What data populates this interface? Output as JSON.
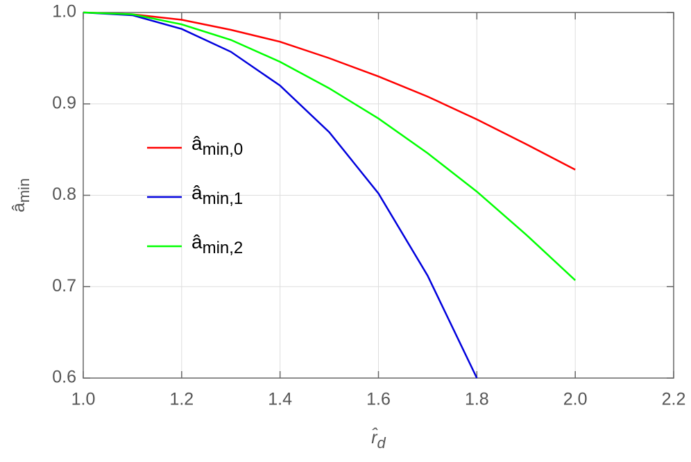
{
  "chart_data": {
    "type": "line",
    "x_label": "r̂d",
    "y_label": "âmin",
    "series": [
      {
        "name": "âmin,0",
        "color": "#ff0000",
        "x": [
          1.0,
          1.1,
          1.2,
          1.3,
          1.4,
          1.5,
          1.6,
          1.7,
          1.8,
          1.9,
          2.0
        ],
        "values": [
          1.0,
          0.998,
          0.992,
          0.981,
          0.968,
          0.95,
          0.93,
          0.908,
          0.883,
          0.856,
          0.828
        ]
      },
      {
        "name": "âmin,1",
        "color": "#0000dd",
        "x": [
          1.0,
          1.1,
          1.2,
          1.3,
          1.4,
          1.5,
          1.6,
          1.7,
          1.8
        ],
        "values": [
          1.0,
          0.997,
          0.982,
          0.957,
          0.92,
          0.869,
          0.802,
          0.712,
          0.6
        ]
      },
      {
        "name": "âmin,2",
        "color": "#00ff00",
        "x": [
          1.0,
          1.1,
          1.2,
          1.3,
          1.4,
          1.5,
          1.6,
          1.7,
          1.8,
          1.9,
          2.0
        ],
        "values": [
          1.0,
          0.998,
          0.987,
          0.97,
          0.946,
          0.917,
          0.884,
          0.846,
          0.804,
          0.757,
          0.707
        ]
      }
    ],
    "xlim": [
      1.0,
      2.2
    ],
    "xticks": [
      {
        "value": 1.0,
        "label": "1.0"
      },
      1.2,
      1.4,
      1.6,
      1.8,
      {
        "value": 2.0,
        "label": "2.0"
      },
      2.2
    ],
    "ylim": [
      0.6,
      1.0
    ],
    "yticks": [
      0.6,
      0.7,
      0.8,
      0.9,
      {
        "value": 1.0,
        "label": "1.0"
      }
    ],
    "grid": true,
    "legend": "left"
  }
}
